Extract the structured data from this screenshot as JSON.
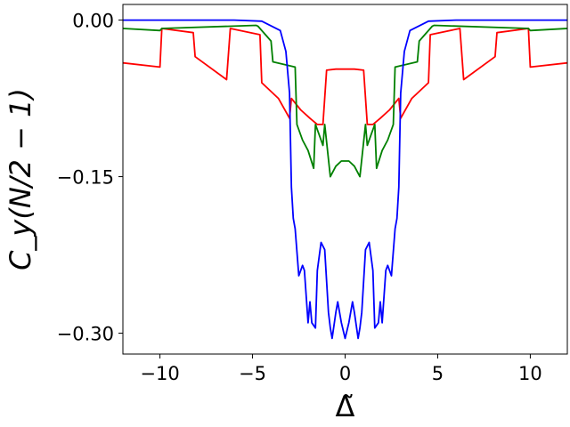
{
  "chart_data": {
    "type": "line",
    "xlabel": "Δ̃",
    "ylabel": "C_y(N/2 − 1)",
    "xlim": [
      -12,
      12
    ],
    "ylim": [
      -0.32,
      0.015
    ],
    "grid": false,
    "x_ticks": [
      -10,
      -5,
      0,
      5,
      10
    ],
    "x_tick_labels": [
      "−10",
      "−5",
      "0",
      "5",
      "10"
    ],
    "y_ticks": [
      0.0,
      -0.15,
      -0.3
    ],
    "y_tick_labels": [
      "0.00",
      "−0.15",
      "−0.30"
    ],
    "series": [
      {
        "color": "#ff0000",
        "x": [
          -12,
          -10,
          -9.9,
          -8.2,
          -8.1,
          -6.4,
          -6.2,
          -4.6,
          -4.5,
          -3.6,
          -3.0,
          -2.9,
          -2.4,
          -1.9,
          -1.5,
          -1.2,
          -1.0,
          -0.5,
          0.0,
          0.5,
          1.0,
          1.2,
          1.5,
          1.9,
          2.4,
          2.9,
          3.0,
          3.6,
          4.5,
          4.6,
          6.2,
          6.4,
          8.1,
          8.2,
          9.9,
          10,
          12
        ],
        "y": [
          -0.041,
          -0.045,
          -0.008,
          -0.012,
          -0.035,
          -0.057,
          -0.008,
          -0.014,
          -0.06,
          -0.075,
          -0.094,
          -0.075,
          -0.086,
          -0.094,
          -0.1,
          -0.1,
          -0.048,
          -0.047,
          -0.047,
          -0.047,
          -0.048,
          -0.1,
          -0.1,
          -0.094,
          -0.086,
          -0.075,
          -0.094,
          -0.075,
          -0.06,
          -0.014,
          -0.008,
          -0.057,
          -0.035,
          -0.012,
          -0.008,
          -0.045,
          -0.041
        ]
      },
      {
        "color": "#008000",
        "x": [
          -12,
          -10,
          -9.9,
          -4.8,
          -4.7,
          -4.0,
          -3.9,
          -2.7,
          -2.6,
          -2.3,
          -2.0,
          -1.7,
          -1.6,
          -1.4,
          -1.2,
          -1.1,
          -0.8,
          -0.5,
          -0.2,
          0.0,
          0.2,
          0.5,
          0.8,
          1.1,
          1.2,
          1.4,
          1.6,
          1.7,
          2.0,
          2.3,
          2.6,
          2.7,
          3.9,
          4.0,
          4.7,
          4.8,
          9.9,
          10,
          12
        ],
        "y": [
          -0.008,
          -0.01,
          -0.008,
          -0.005,
          -0.006,
          -0.02,
          -0.04,
          -0.045,
          -0.1,
          -0.115,
          -0.125,
          -0.142,
          -0.1,
          -0.11,
          -0.12,
          -0.1,
          -0.15,
          -0.14,
          -0.135,
          -0.135,
          -0.135,
          -0.14,
          -0.15,
          -0.1,
          -0.12,
          -0.11,
          -0.1,
          -0.142,
          -0.125,
          -0.115,
          -0.1,
          -0.045,
          -0.04,
          -0.02,
          -0.006,
          -0.005,
          -0.008,
          -0.01,
          -0.008
        ]
      },
      {
        "color": "#0000ff",
        "x": [
          -12,
          -6.0,
          -4.5,
          -3.5,
          -3.2,
          -3.0,
          -2.9,
          -2.8,
          -2.7,
          -2.5,
          -2.3,
          -2.2,
          -2.0,
          -1.9,
          -1.8,
          -1.6,
          -1.5,
          -1.3,
          -1.1,
          -0.9,
          -0.8,
          -0.7,
          -0.5,
          -0.4,
          -0.2,
          0.0,
          0.2,
          0.4,
          0.5,
          0.7,
          0.8,
          0.9,
          1.1,
          1.3,
          1.5,
          1.6,
          1.8,
          1.9,
          2.0,
          2.2,
          2.3,
          2.5,
          2.7,
          2.8,
          2.9,
          3.0,
          3.2,
          3.5,
          4.5,
          6.0,
          12
        ],
        "y": [
          0.0,
          0.0,
          -0.001,
          -0.01,
          -0.03,
          -0.07,
          -0.16,
          -0.19,
          -0.2,
          -0.245,
          -0.235,
          -0.24,
          -0.29,
          -0.27,
          -0.29,
          -0.295,
          -0.24,
          -0.213,
          -0.22,
          -0.28,
          -0.295,
          -0.305,
          -0.28,
          -0.27,
          -0.29,
          -0.305,
          -0.29,
          -0.27,
          -0.28,
          -0.305,
          -0.295,
          -0.28,
          -0.22,
          -0.213,
          -0.24,
          -0.295,
          -0.29,
          -0.27,
          -0.29,
          -0.24,
          -0.235,
          -0.245,
          -0.2,
          -0.19,
          -0.16,
          -0.07,
          -0.03,
          -0.01,
          -0.001,
          0.0,
          0.0
        ]
      }
    ]
  }
}
